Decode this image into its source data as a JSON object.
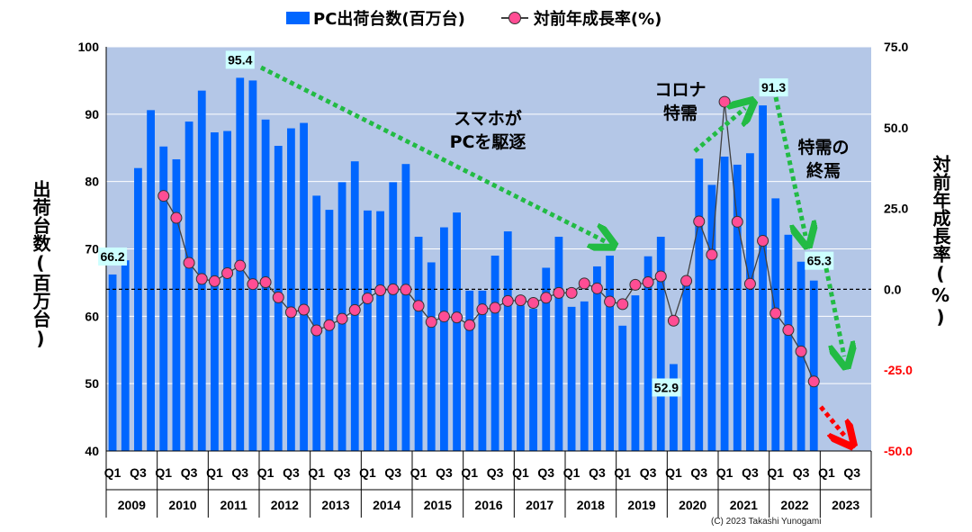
{
  "chart_data": {
    "type": "bar",
    "legend": {
      "position": "top",
      "bar_label": "PC出荷台数(百万台)",
      "line_label": "対前年成長率(%)"
    },
    "y_left": {
      "label": "出荷台数(百万台)",
      "min": 40,
      "max": 100,
      "ticks": [
        "40",
        "50",
        "60",
        "70",
        "80",
        "90",
        "100"
      ]
    },
    "y_right": {
      "label": "対前年成長率(%)",
      "min": -50,
      "max": 75,
      "ticks": [
        "75.0",
        "50.0",
        "25.0",
        "0.0",
        "-25.0",
        "-50.0"
      ]
    },
    "quarter_labels": [
      "Q1",
      "Q3"
    ],
    "years": [
      "2009",
      "2010",
      "2011",
      "2012",
      "2013",
      "2014",
      "2015",
      "2016",
      "2017",
      "2018",
      "2019",
      "2020",
      "2021",
      "2022",
      "2023"
    ],
    "shipments": [
      66.2,
      68.3,
      82.0,
      90.6,
      85.2,
      83.3,
      88.9,
      93.5,
      87.3,
      87.5,
      95.4,
      95.0,
      89.2,
      85.3,
      87.9,
      88.7,
      77.9,
      75.8,
      79.9,
      83.0,
      75.7,
      75.6,
      79.9,
      82.6,
      71.8,
      68.0,
      73.2,
      75.4,
      63.8,
      63.8,
      69.0,
      72.6,
      61.6,
      61.1,
      67.2,
      71.8,
      61.4,
      62.2,
      67.4,
      69.0,
      58.6,
      63.1,
      68.9,
      71.8,
      52.9,
      64.9,
      83.4,
      79.5,
      83.7,
      82.5,
      84.2,
      91.3,
      77.5,
      72.1,
      68.1,
      65.3
    ],
    "growth": [
      null,
      null,
      null,
      null,
      28.9,
      22.1,
      8.2,
      3.2,
      2.5,
      5.0,
      7.3,
      1.6,
      2.2,
      -2.5,
      -7.1,
      -6.3,
      -12.7,
      -11.1,
      -9.1,
      -6.4,
      -2.8,
      -0.3,
      0.0,
      -0.1,
      -5.1,
      -10.1,
      -8.4,
      -8.7,
      -11.1,
      -6.2,
      -5.7,
      -3.6,
      -3.4,
      -4.2,
      -2.6,
      -1.1,
      -1.1,
      1.8,
      0.3,
      -3.8,
      -4.6,
      1.4,
      2.2,
      4.0,
      -9.7,
      2.6,
      21.0,
      10.7,
      58.0,
      20.9,
      1.7,
      15.0,
      -7.4,
      -12.6,
      -19.2,
      -28.5
    ],
    "value_labels": [
      {
        "index": 0,
        "text": "66.2"
      },
      {
        "index": 10,
        "text": "95.4"
      },
      {
        "index": 44,
        "text": "52.9"
      },
      {
        "index": 51,
        "text": "91.3"
      },
      {
        "index": 55,
        "text": "65.3"
      }
    ],
    "annotations": {
      "smartphone": [
        "スマホが",
        "PCを駆逐"
      ],
      "corona": [
        "コロナ",
        "特需"
      ],
      "end": [
        "特需の",
        "終焉"
      ]
    },
    "copyright": "(C) 2023 Takashi Yunogami",
    "grid": true,
    "colors": {
      "plot_bg": "#b4c7e7",
      "bar": "#0066ff",
      "line": "#404040",
      "marker": "#ff4d94",
      "arrow_green": "#22bb44",
      "arrow_red": "#ff0000",
      "label_box": "#ccffff",
      "neg_tick": "#ff0000"
    }
  }
}
